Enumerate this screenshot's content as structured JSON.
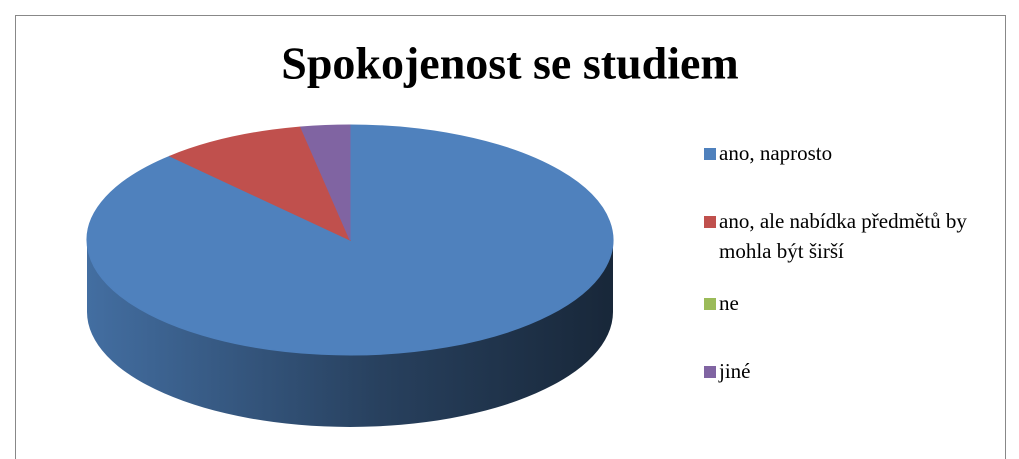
{
  "chart_data": {
    "type": "pie",
    "title": "Spokojenost se studiem",
    "categories": [
      "ano, naprosto",
      "ano, ale nabídka předmětů by mohla být širší",
      "ne",
      "jiné"
    ],
    "values": [
      88,
      9,
      0,
      3
    ],
    "colors": [
      "#4f81bd",
      "#c0504d",
      "#9bbb59",
      "#8064a2"
    ],
    "legend": "right"
  }
}
